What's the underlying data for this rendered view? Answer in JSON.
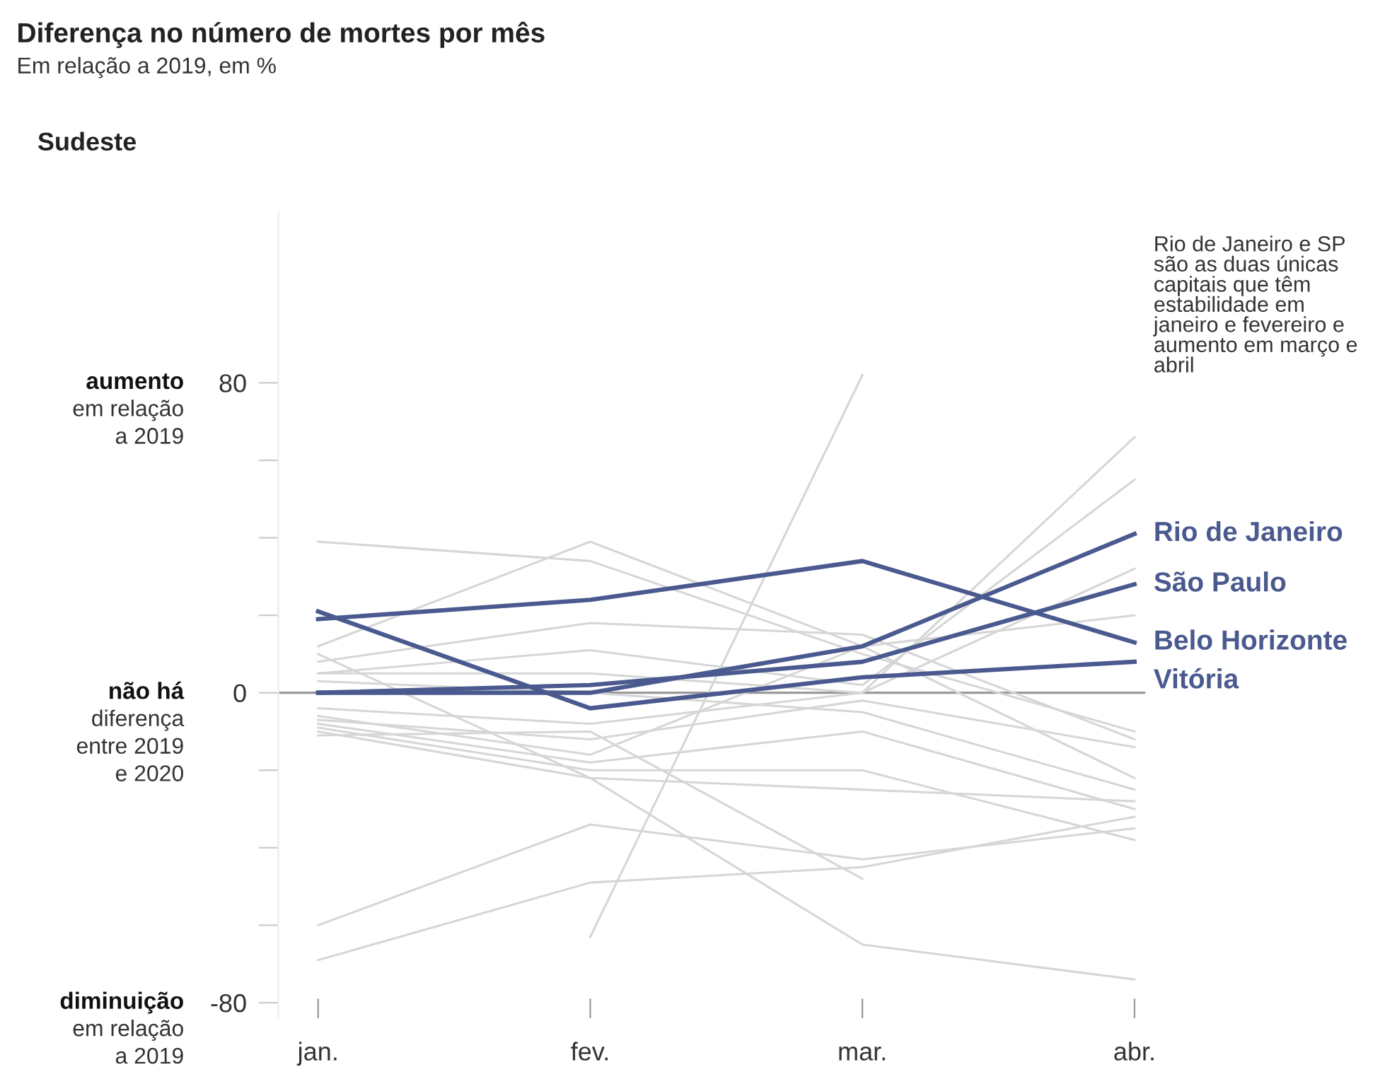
{
  "chart_data": {
    "type": "line",
    "title": "Diferença no número de mortes por mês",
    "subtitle": "Em relação a 2019, em %",
    "categories": [
      "jan.",
      "fev.",
      "mar.",
      "abr."
    ],
    "ylim": [
      -84,
      124
    ],
    "yticks": [
      {
        "value": -80,
        "label": "-80"
      },
      {
        "value": -60,
        "label": null
      },
      {
        "value": -40,
        "label": null
      },
      {
        "value": -20,
        "label": null
      },
      0,
      {
        "value": 20,
        "label": null
      },
      {
        "value": 40,
        "label": null
      },
      {
        "value": 60,
        "label": null
      },
      80
    ],
    "grid": false,
    "legend": false,
    "marker": "none",
    "line_style": "solid",
    "ref_lines": [
      {
        "axis": "y",
        "value": 0,
        "color": "#9a9a9a"
      }
    ],
    "annotations": [
      "Sudeste",
      "Rio de Janeiro e SP\nsão as duas únicas\ncapitais que têm\nestabilidade em\njaneiro e fevereiro e\naumento em março e\nabril",
      "aumento\nem relação\na 2019",
      "não há\ndiferença\nentre 2019\ne 2020",
      "diminuição\nem relação\na 2019"
    ],
    "series": [
      {
        "color": "#d6d6d6",
        "values": [
          39,
          34,
          10,
          -10
        ]
      },
      {
        "color": "#d6d6d6",
        "values": [
          12,
          39,
          12,
          -22
        ]
      },
      {
        "color": "#d6d6d6",
        "values": [
          8,
          18,
          15,
          -12
        ]
      },
      {
        "color": "#d6d6d6",
        "values": [
          5,
          11,
          2,
          55
        ]
      },
      {
        "color": "#d6d6d6",
        "values": [
          5,
          5,
          0,
          32
        ]
      },
      {
        "color": "#d6d6d6",
        "values": [
          3,
          0,
          -5,
          -25
        ]
      },
      {
        "color": "#d6d6d6",
        "values": [
          -6,
          -16,
          12,
          20
        ]
      },
      {
        "color": "#d6d6d6",
        "values": [
          -8,
          -18,
          -10,
          -30
        ]
      },
      {
        "color": "#d6d6d6",
        "values": [
          -9,
          -20,
          -20,
          -38
        ]
      },
      {
        "color": "#d6d6d6",
        "values": [
          -10,
          -22,
          -25,
          -28
        ]
      },
      {
        "color": "#d6d6d6",
        "values": [
          -11,
          -10,
          -48,
          null
        ]
      },
      {
        "color": "#d6d6d6",
        "values": [
          -60,
          -34,
          -43,
          -35
        ]
      },
      {
        "color": "#d6d6d6",
        "values": [
          -69,
          -49,
          -45,
          -32
        ]
      },
      {
        "color": "#d6d6d6",
        "values": [
          null,
          -63,
          82,
          null
        ]
      },
      {
        "color": "#d6d6d6",
        "values": [
          10,
          -22,
          -65,
          -74
        ]
      },
      {
        "color": "#d6d6d6",
        "values": [
          -4,
          -8,
          0,
          66
        ]
      },
      {
        "color": "#d6d6d6",
        "values": [
          -7,
          -12,
          -2,
          -14
        ]
      },
      {
        "name": "Rio de Janeiro",
        "color": "#4a5a8f",
        "values": [
          0,
          0,
          12,
          41
        ]
      },
      {
        "name": "São Paulo",
        "color": "#4a5a8f",
        "values": [
          0,
          2,
          8,
          28
        ]
      },
      {
        "name": "Belo Horizonte",
        "color": "#4a5a8f",
        "values": [
          19,
          24,
          34,
          13
        ]
      },
      {
        "name": "Vitória",
        "color": "#4a5a8f",
        "values": [
          21,
          -4,
          4,
          8
        ]
      }
    ]
  }
}
